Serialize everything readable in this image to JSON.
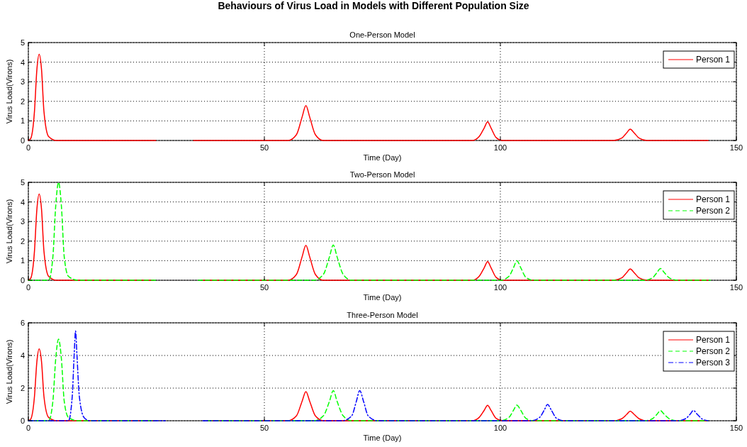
{
  "chart_data": [
    {
      "type": "line",
      "title": "Behaviours of Virus Load in Models with Different Population Size",
      "subtitle": "One-Person Model",
      "xlabel": "Time (Day)",
      "ylabel": "Virus Load(Virons)",
      "xlim": [
        0,
        150
      ],
      "xticks": [
        0,
        50,
        100,
        150
      ],
      "ylim": [
        0,
        5
      ],
      "yticks": [
        0,
        1,
        2,
        3,
        4,
        5
      ],
      "grid": true,
      "legend": "top right",
      "series": [
        {
          "name": "Person 1",
          "color": "#ff0000",
          "line_style": "solid",
          "x": [
            0,
            0.5,
            1.3,
            1.8,
            2.3,
            2.8,
            3.3,
            4.3,
            6,
            27,
            31,
            35,
            55,
            56.8,
            58,
            58.8,
            59.6,
            60.8,
            62.5,
            94,
            95.5,
            96.6,
            97.3,
            98,
            99.1,
            100.5,
            124,
            125.7,
            126.8,
            127.5,
            128.3,
            129.4,
            131,
            144
          ],
          "values": [
            0,
            0.1,
            1.5,
            3.6,
            4.4,
            3.6,
            1.5,
            0.2,
            0,
            0,
            null,
            0,
            0,
            0.3,
            1.2,
            1.78,
            1.2,
            0.3,
            0,
            0,
            0.2,
            0.65,
            0.95,
            0.65,
            0.15,
            0,
            0,
            0.12,
            0.4,
            0.58,
            0.4,
            0.12,
            0,
            0
          ]
        }
      ]
    },
    {
      "type": "line",
      "title": "Two-Person Model",
      "xlabel": "Time (Day)",
      "ylabel": "Virus Load(Virons)",
      "xlim": [
        0,
        150
      ],
      "xticks": [
        0,
        50,
        100,
        150
      ],
      "ylim": [
        0,
        5
      ],
      "yticks": [
        0,
        1,
        2,
        3,
        4,
        5
      ],
      "grid": true,
      "legend": "top right",
      "series": [
        {
          "name": "Person 1",
          "color": "#ff0000",
          "line_style": "solid",
          "x": [
            0,
            0.5,
            1.3,
            1.8,
            2.3,
            2.8,
            3.3,
            4.3,
            6,
            26.5,
            31,
            37,
            55,
            56.8,
            58,
            58.8,
            59.6,
            60.8,
            62.5,
            94,
            95.5,
            96.6,
            97.3,
            98,
            99.1,
            100.5,
            124,
            125.7,
            126.8,
            127.5,
            128.3,
            129.4,
            131,
            144
          ],
          "values": [
            0,
            0.1,
            1.5,
            3.6,
            4.4,
            3.6,
            1.5,
            0.2,
            0,
            0,
            null,
            0,
            0,
            0.3,
            1.2,
            1.78,
            1.2,
            0.3,
            0,
            0,
            0.2,
            0.65,
            0.95,
            0.65,
            0.15,
            0,
            0,
            0.12,
            0.4,
            0.58,
            0.4,
            0.12,
            0,
            0
          ]
        },
        {
          "name": "Person 2",
          "color": "#00ff00",
          "line_style": "dashed",
          "x": [
            0,
            4.3,
            5.2,
            5.8,
            6.4,
            7.0,
            7.6,
            8.5,
            10.5,
            27.5,
            31,
            36,
            60.5,
            62.5,
            63.8,
            64.6,
            65.4,
            66.7,
            68.5,
            100,
            101.8,
            102.8,
            103.5,
            104.3,
            105.4,
            107,
            130.5,
            132.2,
            133.2,
            133.9,
            134.7,
            135.8,
            137.5,
            144.5
          ],
          "values": [
            0,
            0,
            1.2,
            3.8,
            5.0,
            3.8,
            1.2,
            0.2,
            0,
            0,
            null,
            0,
            0,
            0.3,
            1.2,
            1.8,
            1.2,
            0.3,
            0,
            0,
            0.2,
            0.65,
            1.0,
            0.65,
            0.15,
            0,
            0,
            0.12,
            0.4,
            0.6,
            0.4,
            0.12,
            0,
            0
          ]
        }
      ]
    },
    {
      "type": "line",
      "title": "Three-Person Model",
      "xlabel": "Time (Day)",
      "ylabel": "Virus Load(Virons)",
      "xlim": [
        0,
        150
      ],
      "xticks": [
        0,
        50,
        100,
        150
      ],
      "ylim": [
        0,
        6
      ],
      "yticks": [
        0,
        2,
        4,
        6
      ],
      "grid": true,
      "legend": "top right",
      "series": [
        {
          "name": "Person 1",
          "color": "#ff0000",
          "line_style": "solid",
          "x": [
            0,
            0.5,
            1.3,
            1.8,
            2.3,
            2.8,
            3.3,
            4.3,
            6,
            27,
            32,
            38,
            55,
            56.8,
            58,
            58.8,
            59.6,
            60.8,
            62.5,
            94,
            95.5,
            96.6,
            97.3,
            98,
            99.1,
            100.5,
            124,
            125.7,
            126.8,
            127.5,
            128.3,
            129.4,
            131,
            144
          ],
          "values": [
            0,
            0.1,
            1.5,
            3.6,
            4.4,
            3.6,
            1.5,
            0.2,
            0,
            0,
            null,
            0,
            0,
            0.3,
            1.2,
            1.78,
            1.2,
            0.3,
            0,
            0,
            0.2,
            0.65,
            0.95,
            0.65,
            0.15,
            0,
            0,
            0.12,
            0.4,
            0.59,
            0.4,
            0.12,
            0,
            0
          ]
        },
        {
          "name": "Person 2",
          "color": "#00ff00",
          "line_style": "dashed",
          "x": [
            0,
            4.3,
            5.2,
            5.8,
            6.4,
            7.0,
            7.6,
            8.5,
            10.5,
            27,
            32,
            38,
            60.5,
            62.5,
            63.8,
            64.6,
            65.4,
            66.7,
            68.5,
            100,
            101.8,
            102.8,
            103.5,
            104.3,
            105.4,
            107,
            130.5,
            132.2,
            133.2,
            133.9,
            134.7,
            135.8,
            137.5,
            144
          ],
          "values": [
            0,
            0,
            1.2,
            3.8,
            5.0,
            3.8,
            1.2,
            0.2,
            0,
            0,
            null,
            0,
            0,
            0.3,
            1.2,
            1.85,
            1.2,
            0.3,
            0,
            0,
            0.2,
            0.65,
            0.96,
            0.65,
            0.15,
            0,
            0,
            0.12,
            0.4,
            0.62,
            0.4,
            0.12,
            0,
            0
          ]
        },
        {
          "name": "Person 3",
          "color": "#0000ff",
          "line_style": "dashdot",
          "x": [
            0,
            8.5,
            9.3,
            9.7,
            10.0,
            10.3,
            10.8,
            11.8,
            13,
            29,
            33,
            37,
            66.5,
            68.5,
            69.5,
            70.2,
            71,
            72,
            74,
            106.5,
            108.3,
            109.3,
            110,
            110.8,
            111.9,
            113.5,
            137.5,
            139.2,
            140.2,
            140.9,
            141.7,
            142.8,
            144
          ],
          "values": [
            0,
            0,
            1.5,
            4.0,
            5.5,
            4.0,
            1.5,
            0.2,
            0,
            0,
            null,
            0,
            0,
            0.3,
            1.2,
            1.85,
            1.2,
            0.3,
            0,
            0,
            0.2,
            0.65,
            1.0,
            0.65,
            0.15,
            0,
            0,
            0.12,
            0.4,
            0.63,
            0.4,
            0.1,
            0
          ]
        }
      ]
    }
  ]
}
